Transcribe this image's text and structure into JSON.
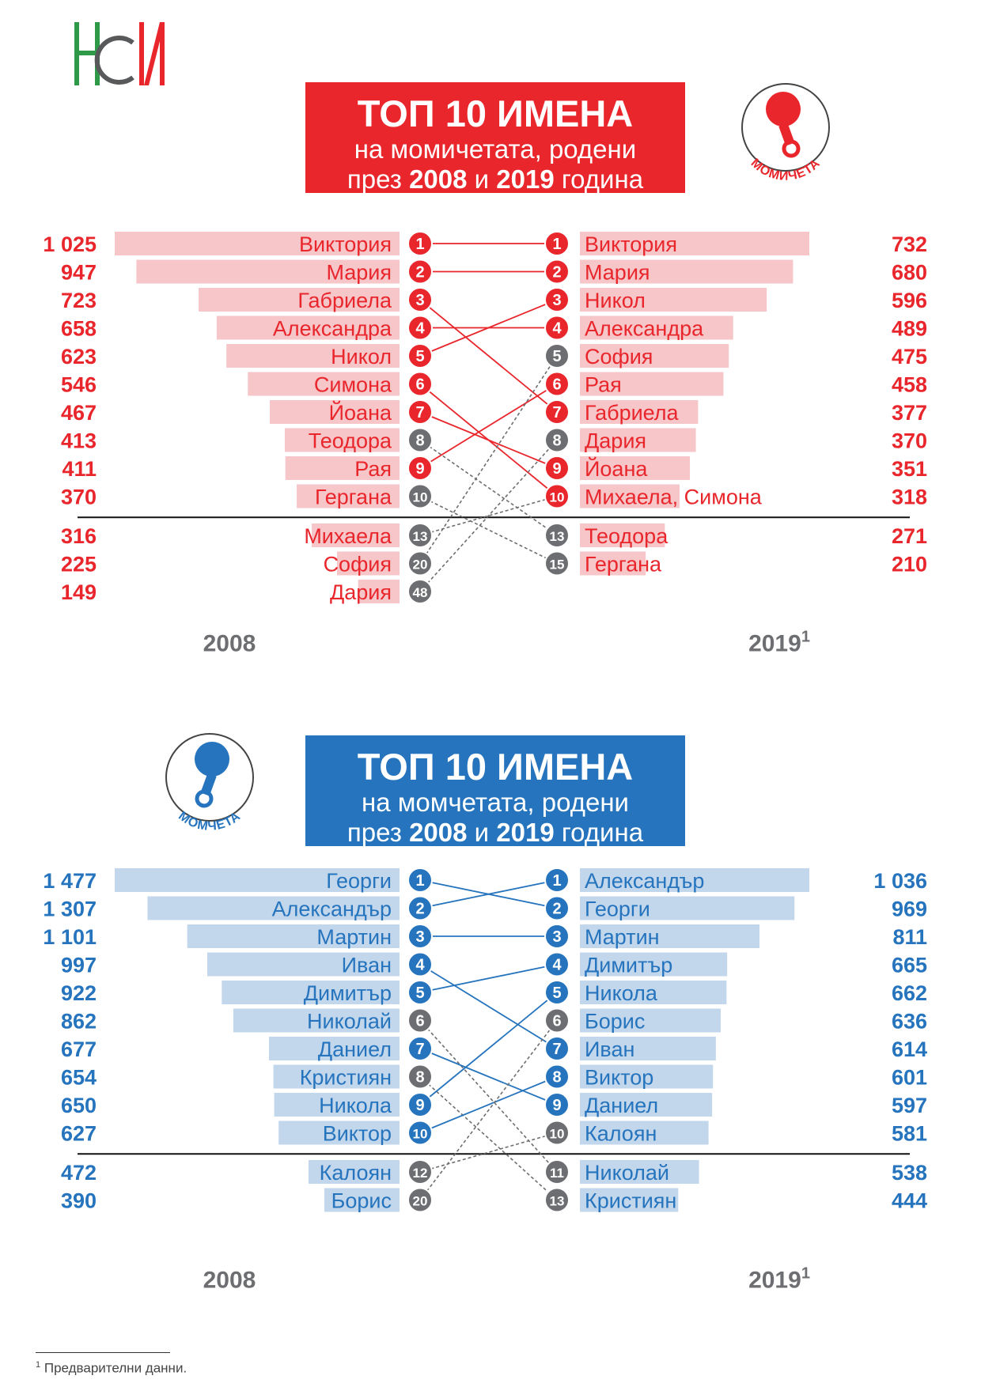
{
  "logo": {
    "name": "logo-nsi"
  },
  "girls": {
    "title_line1": "ТОП 10 ИМЕНА",
    "title_line2": "на момичетата, родени",
    "title_prefix": "през",
    "title_year1": "2008",
    "title_and": "и",
    "title_year2": "2019",
    "title_suffix": "година",
    "badge_label": "МОМИЧЕТА",
    "colors": {
      "accent": "#e8262c",
      "bar": "#f6c6c8",
      "gray": "#6d6e71",
      "label": "#e8262c"
    }
  },
  "boys": {
    "title_line1": "ТОП 10 ИМЕНА",
    "title_line2": "на момчетата, родени",
    "title_prefix": "през",
    "title_year1": "2008",
    "title_and": "и",
    "title_year2": "2019",
    "title_suffix": "година",
    "badge_label": "МОМЧЕТА",
    "colors": {
      "accent": "#2574bd",
      "bar": "#c3d7ec",
      "gray": "#6d6e71",
      "label": "#2574bd"
    }
  },
  "footnote": {
    "mark": "1",
    "text": "Предварителни данни."
  },
  "chart_data": [
    {
      "type": "bar",
      "subtype": "slope-ranking",
      "group": "girls",
      "left_axis_label": "2008",
      "right_axis_label": "2019",
      "right_axis_sup": "1",
      "left": [
        {
          "name": "Виктория",
          "value": 1025,
          "value_label": "1 025",
          "rank": "1",
          "top10_other": true
        },
        {
          "name": "Мария",
          "value": 947,
          "value_label": "947",
          "rank": "2",
          "top10_other": true
        },
        {
          "name": "Габриела",
          "value": 723,
          "value_label": "723",
          "rank": "3",
          "top10_other": true
        },
        {
          "name": "Александра",
          "value": 658,
          "value_label": "658",
          "rank": "4",
          "top10_other": true
        },
        {
          "name": "Никол",
          "value": 623,
          "value_label": "623",
          "rank": "5",
          "top10_other": true
        },
        {
          "name": "Симона",
          "value": 546,
          "value_label": "546",
          "rank": "6",
          "top10_other": true
        },
        {
          "name": "Йоана",
          "value": 467,
          "value_label": "467",
          "rank": "7",
          "top10_other": true
        },
        {
          "name": "Теодора",
          "value": 413,
          "value_label": "413",
          "rank": "8",
          "top10_other": false
        },
        {
          "name": "Рая",
          "value": 411,
          "value_label": "411",
          "rank": "9",
          "top10_other": true
        },
        {
          "name": "Гергана",
          "value": 370,
          "value_label": "370",
          "rank": "10",
          "top10_other": false
        },
        {
          "name": "Михаела",
          "value": 316,
          "value_label": "316",
          "rank": "13",
          "top10_other": false
        },
        {
          "name": "София",
          "value": 225,
          "value_label": "225",
          "rank": "20",
          "top10_other": false
        },
        {
          "name": "Дария",
          "value": 149,
          "value_label": "149",
          "rank": "48",
          "top10_other": false
        }
      ],
      "right": [
        {
          "name": "Виктория",
          "value": 732,
          "value_label": "732",
          "rank": "1",
          "top10_other": true
        },
        {
          "name": "Мария",
          "value": 680,
          "value_label": "680",
          "rank": "2",
          "top10_other": true
        },
        {
          "name": "Никол",
          "value": 596,
          "value_label": "596",
          "rank": "3",
          "top10_other": true
        },
        {
          "name": "Александра",
          "value": 489,
          "value_label": "489",
          "rank": "4",
          "top10_other": true
        },
        {
          "name": "София",
          "value": 475,
          "value_label": "475",
          "rank": "5",
          "top10_other": false
        },
        {
          "name": "Рая",
          "value": 458,
          "value_label": "458",
          "rank": "6",
          "top10_other": true
        },
        {
          "name": "Габриела",
          "value": 377,
          "value_label": "377",
          "rank": "7",
          "top10_other": true
        },
        {
          "name": "Дария",
          "value": 370,
          "value_label": "370",
          "rank": "8",
          "top10_other": false
        },
        {
          "name": "Йоана",
          "value": 351,
          "value_label": "351",
          "rank": "9",
          "top10_other": true
        },
        {
          "name": "Михаела, Симона",
          "value": 318,
          "value_label": "318",
          "rank": "10",
          "top10_other": true
        },
        {
          "name": "Теодора",
          "value": 271,
          "value_label": "271",
          "rank": "13",
          "top10_other": false
        },
        {
          "name": "Гергана",
          "value": 210,
          "value_label": "210",
          "rank": "15",
          "top10_other": false
        }
      ],
      "links": [
        {
          "from": 0,
          "to": 0,
          "style": "solid"
        },
        {
          "from": 1,
          "to": 1,
          "style": "solid"
        },
        {
          "from": 2,
          "to": 6,
          "style": "solid"
        },
        {
          "from": 3,
          "to": 3,
          "style": "solid"
        },
        {
          "from": 4,
          "to": 2,
          "style": "solid"
        },
        {
          "from": 5,
          "to": 9,
          "style": "solid"
        },
        {
          "from": 6,
          "to": 8,
          "style": "solid"
        },
        {
          "from": 7,
          "to": 10,
          "style": "dashed"
        },
        {
          "from": 8,
          "to": 5,
          "style": "solid"
        },
        {
          "from": 9,
          "to": 11,
          "style": "dashed"
        },
        {
          "from": 10,
          "to": 9,
          "style": "dashed"
        },
        {
          "from": 11,
          "to": 4,
          "style": "dashed"
        },
        {
          "from": 12,
          "to": 7,
          "style": "dashed"
        }
      ]
    },
    {
      "type": "bar",
      "subtype": "slope-ranking",
      "group": "boys",
      "left_axis_label": "2008",
      "right_axis_label": "2019",
      "right_axis_sup": "1",
      "left": [
        {
          "name": "Георги",
          "value": 1477,
          "value_label": "1 477",
          "rank": "1",
          "top10_other": true
        },
        {
          "name": "Александър",
          "value": 1307,
          "value_label": "1 307",
          "rank": "2",
          "top10_other": true
        },
        {
          "name": "Мартин",
          "value": 1101,
          "value_label": "1 101",
          "rank": "3",
          "top10_other": true
        },
        {
          "name": "Иван",
          "value": 997,
          "value_label": "997",
          "rank": "4",
          "top10_other": true
        },
        {
          "name": "Димитър",
          "value": 922,
          "value_label": "922",
          "rank": "5",
          "top10_other": true
        },
        {
          "name": "Николай",
          "value": 862,
          "value_label": "862",
          "rank": "6",
          "top10_other": false
        },
        {
          "name": "Даниел",
          "value": 677,
          "value_label": "677",
          "rank": "7",
          "top10_other": true
        },
        {
          "name": "Кристиян",
          "value": 654,
          "value_label": "654",
          "rank": "8",
          "top10_other": false
        },
        {
          "name": "Никола",
          "value": 650,
          "value_label": "650",
          "rank": "9",
          "top10_other": true
        },
        {
          "name": "Виктор",
          "value": 627,
          "value_label": "627",
          "rank": "10",
          "top10_other": true
        },
        {
          "name": "Калоян",
          "value": 472,
          "value_label": "472",
          "rank": "12",
          "top10_other": false
        },
        {
          "name": "Борис",
          "value": 390,
          "value_label": "390",
          "rank": "20",
          "top10_other": false
        }
      ],
      "right": [
        {
          "name": "Александър",
          "value": 1036,
          "value_label": "1 036",
          "rank": "1",
          "top10_other": true
        },
        {
          "name": "Георги",
          "value": 969,
          "value_label": "969",
          "rank": "2",
          "top10_other": true
        },
        {
          "name": "Мартин",
          "value": 811,
          "value_label": "811",
          "rank": "3",
          "top10_other": true
        },
        {
          "name": "Димитър",
          "value": 665,
          "value_label": "665",
          "rank": "4",
          "top10_other": true
        },
        {
          "name": "Никола",
          "value": 662,
          "value_label": "662",
          "rank": "5",
          "top10_other": true
        },
        {
          "name": "Борис",
          "value": 636,
          "value_label": "636",
          "rank": "6",
          "top10_other": false
        },
        {
          "name": "Иван",
          "value": 614,
          "value_label": "614",
          "rank": "7",
          "top10_other": true
        },
        {
          "name": "Виктор",
          "value": 601,
          "value_label": "601",
          "rank": "8",
          "top10_other": true
        },
        {
          "name": "Даниел",
          "value": 597,
          "value_label": "597",
          "rank": "9",
          "top10_other": true
        },
        {
          "name": "Калоян",
          "value": 581,
          "value_label": "581",
          "rank": "10",
          "top10_other": false
        },
        {
          "name": "Николай",
          "value": 538,
          "value_label": "538",
          "rank": "11",
          "top10_other": false
        },
        {
          "name": "Кристиян",
          "value": 444,
          "value_label": "444",
          "rank": "13",
          "top10_other": false
        }
      ],
      "links": [
        {
          "from": 0,
          "to": 1,
          "style": "solid"
        },
        {
          "from": 1,
          "to": 0,
          "style": "solid"
        },
        {
          "from": 2,
          "to": 2,
          "style": "solid"
        },
        {
          "from": 3,
          "to": 6,
          "style": "solid"
        },
        {
          "from": 4,
          "to": 3,
          "style": "solid"
        },
        {
          "from": 5,
          "to": 10,
          "style": "dashed"
        },
        {
          "from": 6,
          "to": 8,
          "style": "solid"
        },
        {
          "from": 7,
          "to": 11,
          "style": "dashed"
        },
        {
          "from": 8,
          "to": 4,
          "style": "solid"
        },
        {
          "from": 9,
          "to": 7,
          "style": "solid"
        },
        {
          "from": 10,
          "to": 9,
          "style": "dashed"
        },
        {
          "from": 11,
          "to": 5,
          "style": "dashed"
        }
      ]
    }
  ]
}
